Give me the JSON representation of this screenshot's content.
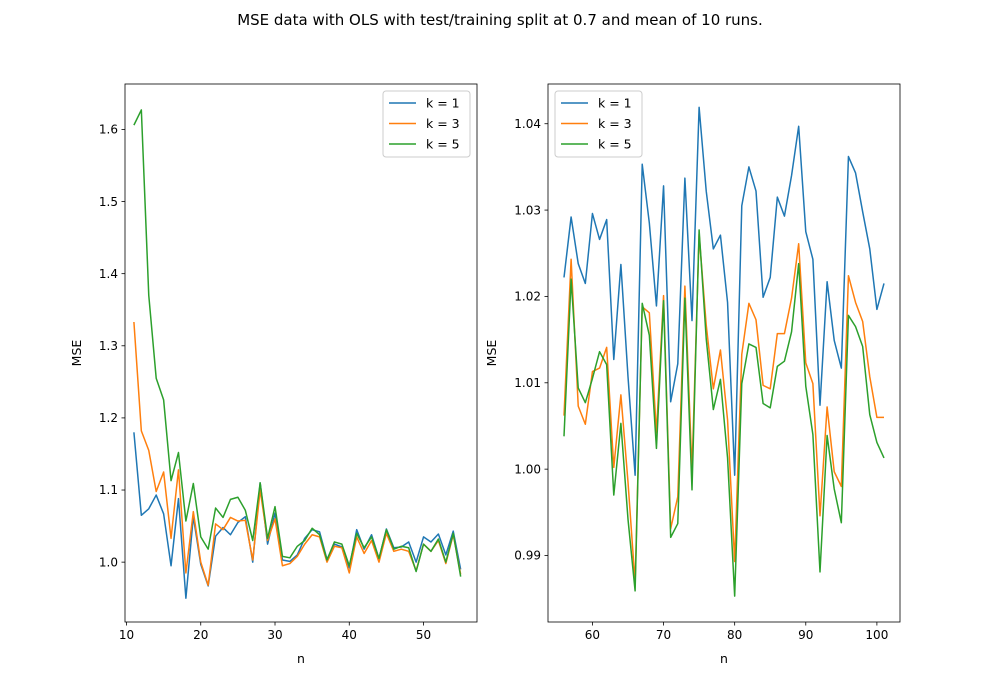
{
  "figure": {
    "title": "MSE data with OLS with test/training split at 0.7 and mean of 10 runs."
  },
  "chart_data": [
    {
      "type": "line",
      "title": "",
      "xlabel": "n",
      "ylabel": "MSE",
      "xlim": [
        9.8,
        57.2
      ],
      "ylim": [
        0.917,
        1.663
      ],
      "xticks": [
        10,
        20,
        30,
        40,
        50
      ],
      "xtick_labels": [
        "10",
        "20",
        "30",
        "40",
        "50"
      ],
      "yticks": [
        1.0,
        1.1,
        1.2,
        1.3,
        1.4,
        1.5,
        1.6
      ],
      "ytick_labels": [
        "1.0",
        "1.1",
        "1.2",
        "1.3",
        "1.4",
        "1.5",
        "1.6"
      ],
      "grid": false,
      "legend_position": "upper right",
      "x": [
        11,
        12,
        13,
        14,
        15,
        16,
        17,
        18,
        19,
        20,
        21,
        22,
        23,
        24,
        25,
        26,
        27,
        28,
        29,
        30,
        31,
        32,
        33,
        34,
        35,
        36,
        37,
        38,
        39,
        40,
        41,
        42,
        43,
        44,
        45,
        46,
        47,
        48,
        49,
        50,
        51,
        52,
        53,
        54,
        55
      ],
      "series": [
        {
          "name": "k = 1",
          "color": "#1f77b4",
          "values": [
            1.18,
            1.065,
            1.074,
            1.093,
            1.067,
            0.995,
            1.088,
            0.95,
            1.063,
            0.997,
            0.967,
            1.036,
            1.048,
            1.038,
            1.055,
            1.063,
            1.0,
            1.11,
            1.025,
            1.068,
            1.003,
            1.001,
            1.01,
            1.033,
            1.045,
            1.042,
            1.004,
            1.025,
            1.021,
            0.992,
            1.045,
            1.018,
            1.038,
            1.005,
            1.046,
            1.02,
            1.021,
            1.028,
            1.0,
            1.035,
            1.028,
            1.039,
            1.01,
            1.043,
            0.99
          ]
        },
        {
          "name": "k = 3",
          "color": "#ff7f0e",
          "values": [
            1.333,
            1.182,
            1.155,
            1.098,
            1.125,
            1.033,
            1.128,
            0.985,
            1.07,
            1.0,
            0.968,
            1.053,
            1.045,
            1.062,
            1.057,
            1.058,
            1.003,
            1.1,
            1.03,
            1.06,
            0.995,
            0.998,
            1.008,
            1.025,
            1.038,
            1.035,
            1.0,
            1.022,
            1.02,
            0.985,
            1.035,
            1.012,
            1.03,
            1.0,
            1.04,
            1.015,
            1.018,
            1.015,
            0.988,
            1.025,
            1.015,
            1.03,
            0.998,
            1.038,
            0.983
          ]
        },
        {
          "name": "k = 5",
          "color": "#2ca02c",
          "values": [
            1.606,
            1.627,
            1.37,
            1.255,
            1.225,
            1.113,
            1.152,
            1.057,
            1.109,
            1.035,
            1.018,
            1.075,
            1.062,
            1.087,
            1.09,
            1.072,
            1.03,
            1.11,
            1.033,
            1.077,
            1.008,
            1.006,
            1.022,
            1.03,
            1.047,
            1.038,
            1.003,
            1.028,
            1.025,
            0.995,
            1.04,
            1.02,
            1.035,
            1.005,
            1.045,
            1.018,
            1.022,
            1.02,
            0.987,
            1.025,
            1.015,
            1.032,
            1.0,
            1.04,
            0.98
          ]
        }
      ]
    },
    {
      "type": "line",
      "title": "",
      "xlabel": "n",
      "ylabel": "MSE",
      "xlim": [
        53.75,
        103.25
      ],
      "ylim": [
        0.9823,
        1.0446
      ],
      "xticks": [
        60,
        70,
        80,
        90,
        100
      ],
      "xtick_labels": [
        "60",
        "70",
        "80",
        "90",
        "100"
      ],
      "yticks": [
        0.99,
        1.0,
        1.01,
        1.02,
        1.03,
        1.04
      ],
      "ytick_labels": [
        "0.99",
        "1.00",
        "1.01",
        "1.02",
        "1.03",
        "1.04"
      ],
      "grid": false,
      "legend_position": "upper left",
      "x": [
        56,
        57,
        58,
        59,
        60,
        61,
        62,
        63,
        64,
        65,
        66,
        67,
        68,
        69,
        70,
        71,
        72,
        73,
        74,
        75,
        76,
        77,
        78,
        79,
        80,
        81,
        82,
        83,
        84,
        85,
        86,
        87,
        88,
        89,
        90,
        91,
        92,
        93,
        94,
        95,
        96,
        97,
        98,
        99,
        100,
        101
      ],
      "series": [
        {
          "name": "k = 1",
          "color": "#1f77b4",
          "values": [
            1.0222,
            1.0292,
            1.0238,
            1.0215,
            1.0296,
            1.0266,
            1.0289,
            1.0127,
            1.0237,
            1.0107,
            0.9993,
            1.0353,
            1.0285,
            1.0189,
            1.0328,
            1.0078,
            1.0122,
            1.0337,
            1.0172,
            1.0419,
            1.0322,
            1.0255,
            1.0271,
            1.0193,
            0.9993,
            1.0305,
            1.035,
            1.0322,
            1.0199,
            1.0222,
            1.0315,
            1.0293,
            1.034,
            1.0397,
            1.0275,
            1.0243,
            1.0074,
            1.0217,
            1.0149,
            1.0117,
            1.0362,
            1.0343,
            1.0298,
            1.0255,
            1.0185,
            1.0215
          ]
        },
        {
          "name": "k = 3",
          "color": "#ff7f0e",
          "values": [
            1.0062,
            1.0243,
            1.0073,
            1.0052,
            1.0113,
            1.0117,
            1.0141,
            1.0002,
            1.0086,
            0.9985,
            0.9868,
            1.0188,
            1.0181,
            1.0042,
            1.0201,
            0.9931,
            0.9968,
            1.0212,
            0.9998,
            1.0272,
            1.0167,
            1.0093,
            1.0138,
            1.0057,
            0.9893,
            1.0133,
            1.0192,
            1.0173,
            1.0097,
            1.0093,
            1.0157,
            1.0157,
            1.0198,
            1.0261,
            1.0123,
            1.0099,
            0.9946,
            1.0072,
            0.9997,
            0.998,
            1.0224,
            1.0193,
            1.0171,
            1.0107,
            1.006,
            1.006
          ]
        },
        {
          "name": "k = 5",
          "color": "#2ca02c",
          "values": [
            1.0038,
            1.022,
            1.0094,
            1.0077,
            1.0105,
            1.0136,
            1.0121,
            0.997,
            1.0053,
            0.9942,
            0.9859,
            1.0192,
            1.0155,
            1.0024,
            1.0195,
            0.9921,
            0.9937,
            1.0198,
            0.9976,
            1.0277,
            1.0151,
            1.0069,
            1.0104,
            1.0013,
            0.9853,
            1.0099,
            1.0145,
            1.0141,
            1.0076,
            1.0071,
            1.0119,
            1.0125,
            1.0159,
            1.0238,
            1.0096,
            1.004,
            0.9881,
            1.0039,
            0.9977,
            0.9938,
            1.0178,
            1.0165,
            1.0142,
            1.0063,
            1.0031,
            1.0013
          ]
        }
      ]
    }
  ]
}
